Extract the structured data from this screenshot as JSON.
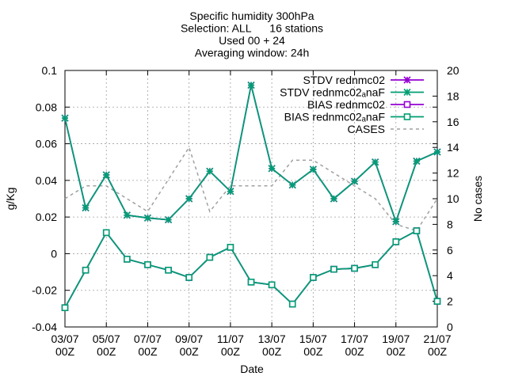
{
  "chart_data": {
    "type": "line",
    "title_lines": [
      "Specific humidity 300hPa",
      "Selection: ALL      16 stations",
      "Used 00 + 24",
      "Averaging window: 24h"
    ],
    "xlabel": "Date",
    "ylabel": "g/Kg",
    "y2label": "No cases",
    "x_ticks": [
      {
        "top": "03/07",
        "bottom": "00Z",
        "day": 3
      },
      {
        "top": "05/07",
        "bottom": "00Z",
        "day": 5
      },
      {
        "top": "07/07",
        "bottom": "00Z",
        "day": 7
      },
      {
        "top": "09/07",
        "bottom": "00Z",
        "day": 9
      },
      {
        "top": "11/07",
        "bottom": "00Z",
        "day": 11
      },
      {
        "top": "13/07",
        "bottom": "00Z",
        "day": 13
      },
      {
        "top": "15/07",
        "bottom": "00Z",
        "day": 15
      },
      {
        "top": "17/07",
        "bottom": "00Z",
        "day": 17
      },
      {
        "top": "19/07",
        "bottom": "00Z",
        "day": 19
      },
      {
        "top": "21/07",
        "bottom": "00Z",
        "day": 21
      }
    ],
    "xlim": [
      3,
      21
    ],
    "ylim": [
      -0.04,
      0.1
    ],
    "y_ticks": [
      -0.04,
      -0.02,
      0,
      0.02,
      0.04,
      0.06,
      0.08,
      0.1
    ],
    "y_tick_labels": [
      "-0.04",
      "-0.02",
      "0",
      "0.02",
      "0.04",
      "0.06",
      "0.08",
      "0.1"
    ],
    "y2lim": [
      0,
      20
    ],
    "y2_ticks": [
      0,
      2,
      4,
      6,
      8,
      10,
      12,
      14,
      16,
      18,
      20
    ],
    "grid": true,
    "legend_position": "top-right",
    "legend": [
      {
        "label": "STDV rednmc02",
        "color": "#9400d3",
        "marker": "star",
        "style": "solid"
      },
      {
        "label": "STDV rednmc02ₐnaF",
        "color": "#009e73",
        "marker": "star",
        "style": "solid"
      },
      {
        "label": "BIAS rednmc02",
        "color": "#9400d3",
        "marker": "square",
        "style": "solid"
      },
      {
        "label": "BIAS rednmc02ₐnaF",
        "color": "#009e73",
        "marker": "square",
        "style": "solid"
      },
      {
        "label": "CASES",
        "color": "#a0a0a0",
        "marker": "none",
        "style": "dashed"
      }
    ],
    "x": [
      3,
      4,
      5,
      6,
      7,
      8,
      9,
      10,
      11,
      12,
      13,
      14,
      15,
      16,
      17,
      18,
      19,
      20,
      21
    ],
    "series": [
      {
        "name": "STDV rednmc02",
        "axis": "y",
        "values": [
          0.074,
          0.025,
          0.043,
          0.021,
          0.0195,
          0.0185,
          0.03,
          0.045,
          0.034,
          0.092,
          0.0465,
          0.0375,
          0.046,
          0.03,
          0.0395,
          0.05,
          0.0175,
          0.0505,
          0.0555
        ]
      },
      {
        "name": "STDV rednmc02ₐnaF",
        "axis": "y",
        "values": [
          0.074,
          0.025,
          0.043,
          0.021,
          0.0195,
          0.0185,
          0.03,
          0.045,
          0.034,
          0.092,
          0.0465,
          0.0375,
          0.046,
          0.03,
          0.0395,
          0.05,
          0.0175,
          0.0505,
          0.0555
        ]
      },
      {
        "name": "BIAS rednmc02",
        "axis": "y",
        "values": [
          -0.0295,
          -0.009,
          0.0115,
          -0.003,
          -0.006,
          -0.009,
          -0.013,
          -0.002,
          0.0035,
          -0.0155,
          -0.017,
          -0.0275,
          -0.013,
          -0.0085,
          -0.008,
          -0.006,
          0.0065,
          0.0125,
          -0.026
        ]
      },
      {
        "name": "BIAS rednmc02ₐnaF",
        "axis": "y",
        "values": [
          -0.0295,
          -0.009,
          0.0115,
          -0.003,
          -0.006,
          -0.009,
          -0.013,
          -0.002,
          0.0035,
          -0.0155,
          -0.017,
          -0.0275,
          -0.013,
          -0.0085,
          -0.008,
          -0.006,
          0.0065,
          0.0125,
          -0.026
        ]
      },
      {
        "name": "CASES",
        "axis": "y2",
        "values": [
          10,
          11,
          11,
          10,
          9,
          11.5,
          14,
          9,
          11,
          11,
          11,
          13,
          13,
          12,
          11,
          10,
          8,
          7.5,
          10
        ]
      }
    ],
    "colors": {
      "purple": "#9400d3",
      "green": "#009e73",
      "cases": "#a0a0a0",
      "grid": "#a0a0a0"
    }
  }
}
